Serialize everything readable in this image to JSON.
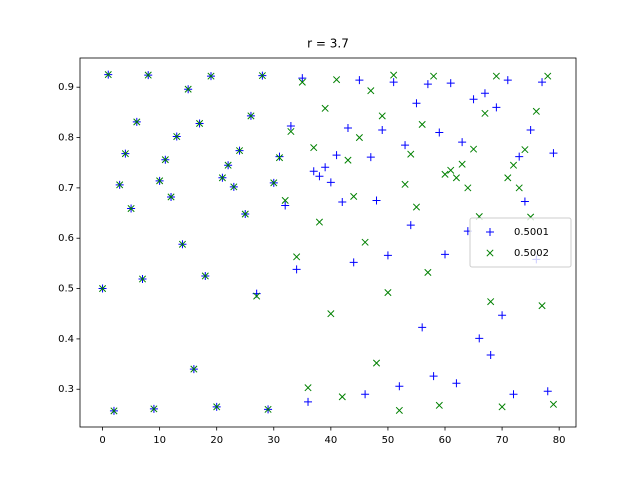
{
  "chart_data": {
    "type": "scatter",
    "title": "r = 3.7",
    "x": [
      0,
      1,
      2,
      3,
      4,
      5,
      6,
      7,
      8,
      9,
      10,
      11,
      12,
      13,
      14,
      15,
      16,
      17,
      18,
      19,
      20,
      21,
      22,
      23,
      24,
      25,
      26,
      27,
      28,
      29,
      30,
      31,
      32,
      33,
      34,
      35,
      36,
      37,
      38,
      39,
      40,
      41,
      42,
      43,
      44,
      45,
      46,
      47,
      48,
      49,
      50,
      51,
      52,
      53,
      54,
      55,
      56,
      57,
      58,
      59,
      60,
      61,
      62,
      63,
      64,
      65,
      66,
      67,
      68,
      69,
      70,
      71,
      72,
      73,
      74,
      75,
      76,
      77,
      78,
      79
    ],
    "series": [
      {
        "name": "0.5001",
        "color": "#0000ff",
        "marker": "+",
        "values": [
          0.5,
          0.925,
          0.257,
          0.706,
          0.768,
          0.659,
          0.831,
          0.519,
          0.924,
          0.261,
          0.714,
          0.756,
          0.682,
          0.802,
          0.588,
          0.896,
          0.34,
          0.828,
          0.525,
          0.922,
          0.265,
          0.72,
          0.745,
          0.702,
          0.774,
          0.648,
          0.843,
          0.49,
          0.923,
          0.26,
          0.71,
          0.762,
          0.665,
          0.823,
          0.538,
          0.918,
          0.275,
          0.733,
          0.723,
          0.741,
          0.711,
          0.765,
          0.672,
          0.819,
          0.552,
          0.914,
          0.29,
          0.761,
          0.675,
          0.815,
          0.566,
          0.91,
          0.306,
          0.785,
          0.626,
          0.868,
          0.423,
          0.906,
          0.326,
          0.81,
          0.568,
          0.908,
          0.312,
          0.791,
          0.614,
          0.876,
          0.401,
          0.888,
          0.368,
          0.86,
          0.447,
          0.914,
          0.29,
          0.762,
          0.673,
          0.815,
          0.558,
          0.91,
          0.296,
          0.769
        ]
      },
      {
        "name": "0.5002",
        "color": "#008000",
        "marker": "x",
        "values": [
          0.5,
          0.925,
          0.257,
          0.706,
          0.768,
          0.659,
          0.831,
          0.519,
          0.924,
          0.261,
          0.714,
          0.756,
          0.682,
          0.802,
          0.588,
          0.896,
          0.34,
          0.828,
          0.525,
          0.922,
          0.265,
          0.72,
          0.745,
          0.702,
          0.774,
          0.648,
          0.843,
          0.485,
          0.923,
          0.26,
          0.71,
          0.76,
          0.675,
          0.812,
          0.563,
          0.91,
          0.303,
          0.78,
          0.632,
          0.858,
          0.45,
          0.915,
          0.285,
          0.755,
          0.683,
          0.8,
          0.592,
          0.893,
          0.352,
          0.843,
          0.492,
          0.924,
          0.258,
          0.707,
          0.767,
          0.662,
          0.826,
          0.532,
          0.922,
          0.268,
          0.727,
          0.735,
          0.72,
          0.747,
          0.7,
          0.777,
          0.643,
          0.848,
          0.474,
          0.922,
          0.265,
          0.72,
          0.745,
          0.7,
          0.776,
          0.642,
          0.852,
          0.466,
          0.922,
          0.27
        ]
      }
    ],
    "xlim": [
      -3.95,
      82.95
    ],
    "ylim": [
      0.225,
      0.958
    ],
    "xticks": [
      0,
      10,
      20,
      30,
      40,
      50,
      60,
      70,
      80
    ],
    "yticks": [
      0.3,
      0.4,
      0.5,
      0.6,
      0.7,
      0.8,
      0.9
    ],
    "legend": "center right"
  }
}
